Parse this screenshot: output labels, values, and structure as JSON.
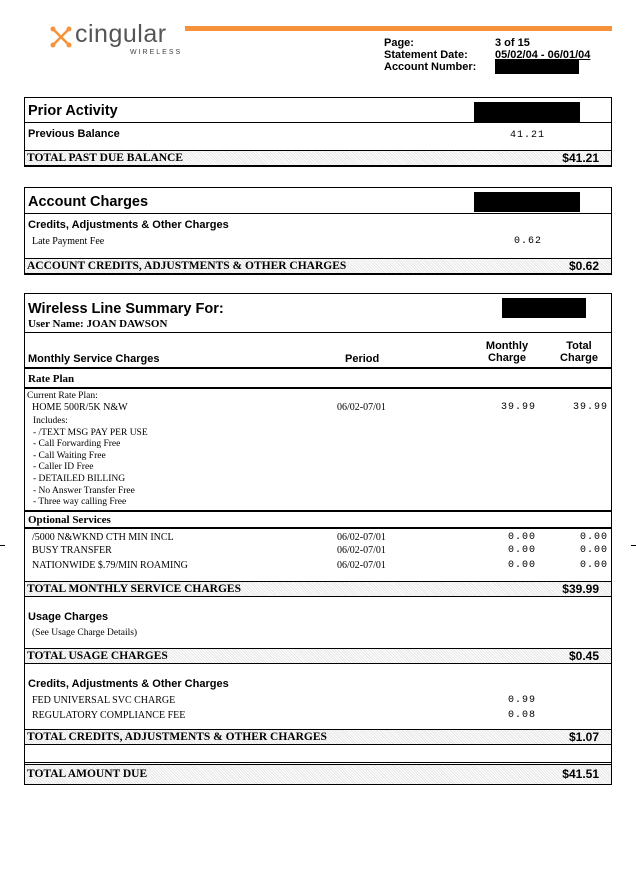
{
  "header": {
    "logo_text": "cingular",
    "logo_sub": "WIRELESS",
    "brand_color": "#f7923a",
    "page_label": "Page:",
    "page_value": "3 of 15",
    "statement_label": "Statement Date:",
    "statement_value": "05/02/04 - 06/01/04",
    "account_label": "Account Number:"
  },
  "prior": {
    "title": "Prior Activity",
    "prev_label": "Previous Balance",
    "prev_value": "41.21",
    "total_label": "TOTAL PAST DUE BALANCE",
    "total_value": "$41.21"
  },
  "account": {
    "title": "Account Charges",
    "sub": "Credits, Adjustments & Other Charges",
    "fee_label": "Late Payment Fee",
    "fee_value": "0.62",
    "total_label": "ACCOUNT CREDITS, ADJUSTMENTS & OTHER CHARGES",
    "total_value": "$0.62"
  },
  "wireless": {
    "title": "Wireless Line Summary For:",
    "user": "User Name: JOAN DAWSON",
    "col_service": "Monthly Service Charges",
    "col_period": "Period",
    "col_monthly_1": "Monthly",
    "col_monthly_2": "Charge",
    "col_total_1": "Total",
    "col_total_2": "Charge",
    "rate_plan": "Rate Plan",
    "current_label": "Current Rate Plan:",
    "plan_name": "HOME 500R/5K N&W",
    "plan_period": "06/02-07/01",
    "plan_monthly": "39.99",
    "plan_total": "39.99",
    "includes": [
      "Includes:",
      "- /TEXT MSG PAY PER USE",
      "- Call Forwarding Free",
      "- Call Waiting Free",
      "- Caller ID Free",
      "- DETAILED BILLING",
      "- No Answer Transfer Free",
      "- Three way calling Free"
    ],
    "optional": "Optional Services",
    "options": [
      {
        "name": "/5000 N&WKND CTH MIN INCL",
        "period": "06/02-07/01",
        "monthly": "0.00",
        "total": "0.00"
      },
      {
        "name": "BUSY TRANSFER",
        "period": "06/02-07/01",
        "monthly": "0.00",
        "total": "0.00"
      },
      {
        "name": "NATIONWIDE $.79/MIN ROAMING",
        "period": "06/02-07/01",
        "monthly": "0.00",
        "total": "0.00"
      }
    ],
    "total_monthly_label": "TOTAL MONTHLY SERVICE CHARGES",
    "total_monthly_value": "$39.99",
    "usage_title": "Usage Charges",
    "usage_note": "(See Usage Charge Details)",
    "total_usage_label": "TOTAL USAGE CHARGES",
    "total_usage_value": "$0.45",
    "credits_title": "Credits, Adjustments & Other Charges",
    "credits": [
      {
        "name": "FED UNIVERSAL SVC CHARGE",
        "value": "0.99"
      },
      {
        "name": "REGULATORY COMPLIANCE FEE",
        "value": "0.08"
      }
    ],
    "total_credits_label": "TOTAL CREDITS, ADJUSTMENTS & OTHER CHARGES",
    "total_credits_value": "$1.07",
    "total_due_label": "TOTAL AMOUNT DUE",
    "total_due_value": "$41.51"
  }
}
